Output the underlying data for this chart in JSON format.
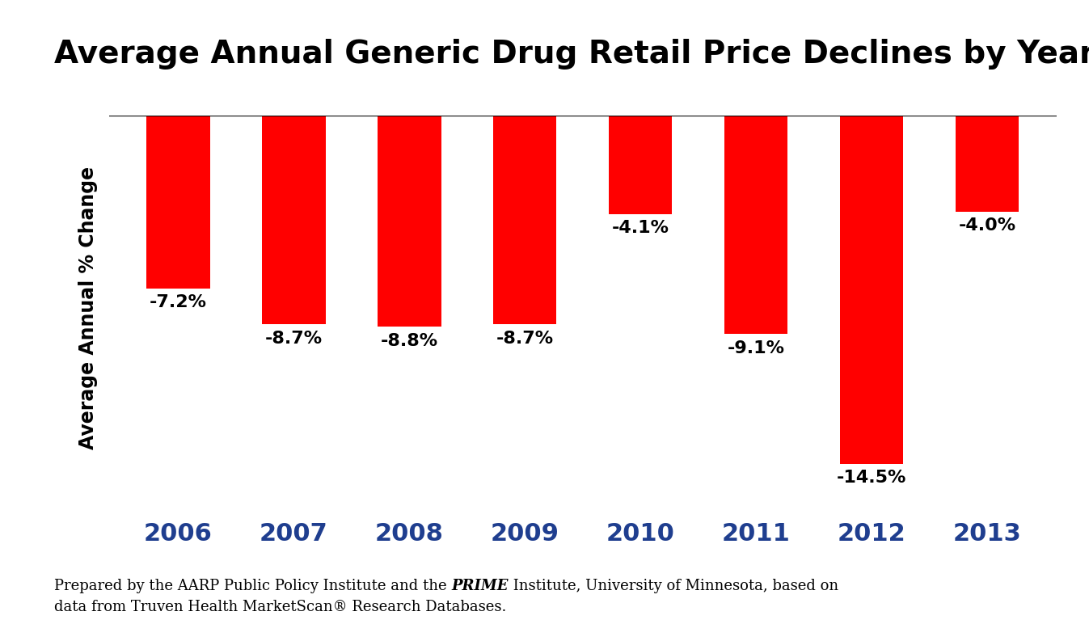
{
  "title": "Average Annual Generic Drug Retail Price Declines by Year",
  "ylabel": "Average Annual % Change",
  "categories": [
    "2006",
    "2007",
    "2008",
    "2009",
    "2010",
    "2011",
    "2012",
    "2013"
  ],
  "values": [
    -7.2,
    -8.7,
    -8.8,
    -8.7,
    -4.1,
    -9.1,
    -14.5,
    -4.0
  ],
  "labels": [
    "-7.2%",
    "-8.7%",
    "-8.8%",
    "-8.7%",
    "-4.1%",
    "-9.1%",
    "-14.5%",
    "-4.0%"
  ],
  "bar_color": "#FF0000",
  "background_color": "#FFFFFF",
  "title_fontsize": 28,
  "ylabel_fontsize": 17,
  "tick_label_fontsize": 22,
  "bar_label_fontsize": 16,
  "ylim": [
    -16,
    0
  ],
  "footnote_fontsize": 13,
  "xlabel_color": "#1F3E8F",
  "title_color": "#000000",
  "bar_width": 0.55
}
